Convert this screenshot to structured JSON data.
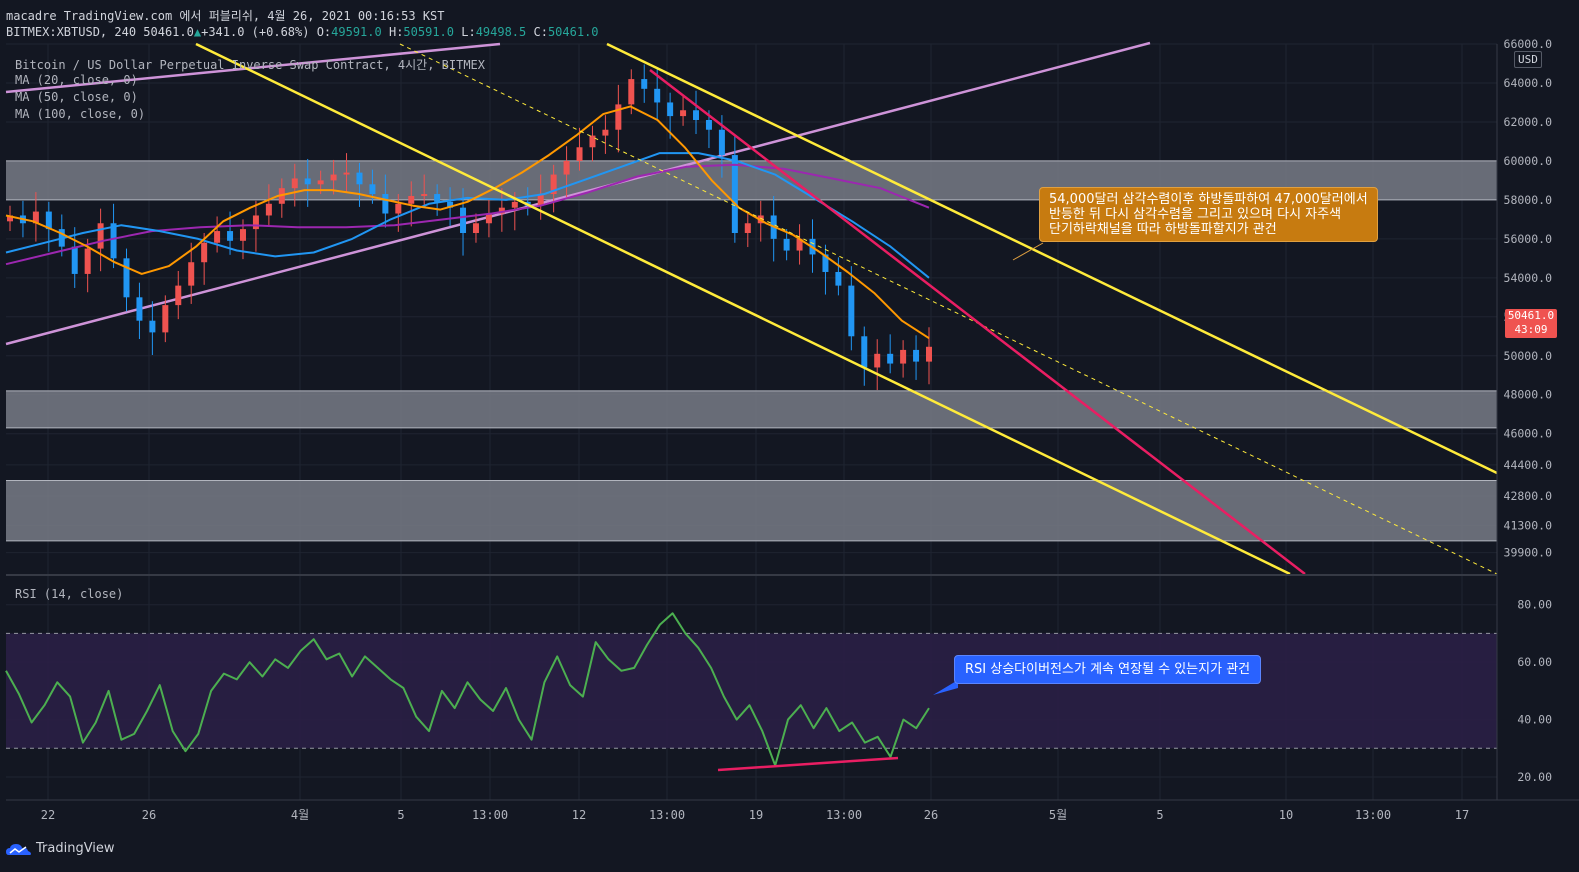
{
  "header": {
    "publish_line": "macadre TradingView.com 에서 퍼블리쉬, 4월 26, 2021 00:16:53 KST",
    "symbol": "BITMEX:XBTUSD, 240",
    "last": "50461.0",
    "change": "+341.0 (+0.68%)",
    "o_label": "O:",
    "o_value": "49591.0",
    "h_label": "H:",
    "h_value": "50591.0",
    "l_label": "L:",
    "l_value": "49498.5",
    "c_label": "C:",
    "c_value": "50461.0"
  },
  "legend": {
    "title": "Bitcoin / US Dollar Perpetual Inverse Swap Contract, 4시간, BITMEX",
    "ma20": "MA (20, close, 0)",
    "ma50": "MA (50, close, 0)",
    "ma100": "MA (100, close, 0)",
    "rsi": "RSI (14, close)"
  },
  "annotations": {
    "price_note_line1": "54,000달러 삼각수렴이후 하방돌파하여 47,000달러에서",
    "price_note_line2": "반등한 뒤 다시 삼각수렴을 그리고 있으며 다시 자주색",
    "price_note_line3": "단기하락채널을 따라 하방돌파할지가 관건",
    "rsi_note": "RSI 상승다이버전스가 계속 연장될 수 있는지가 관건"
  },
  "price_axis": {
    "currency": "USD",
    "last_price": "50461.0",
    "countdown": "43:09"
  },
  "footer": {
    "brand": "TradingView"
  },
  "colors": {
    "background": "#131722",
    "candle_up": "#ef5350",
    "candle_down": "#2196f3",
    "ma20": "#ff9800",
    "ma50": "#2196f3",
    "ma100": "#9c27b0",
    "channel_yellow": "#ffeb3b",
    "trend_pink": "#e91e63",
    "channel_violet": "#ce93d8",
    "rsi_line": "#4caf50",
    "price_note_bg": "#c77b10",
    "rsi_note_bg": "#2962ff"
  },
  "chart_data": [
    {
      "type": "candlestick",
      "title": "Bitcoin / US Dollar Perpetual Inverse Swap Contract, 4시간, BITMEX",
      "ylim": [
        38800,
        66000
      ],
      "y_ticks": [
        "66000.0",
        "64000.0",
        "62000.0",
        "60000.0",
        "58000.0",
        "56000.0",
        "54000.0",
        "52000.0",
        "50000.0",
        "48000.0",
        "46000.0",
        "44400.0",
        "42800.0",
        "41300.0",
        "39900.0"
      ],
      "x_ticks": [
        "22",
        "26",
        "4월",
        "5",
        "13:00",
        "12",
        "13:00",
        "19",
        "13:00",
        "26",
        "5월",
        "5",
        "10",
        "13:00",
        "17"
      ],
      "close_series": [
        57200,
        56800,
        57400,
        56500,
        55600,
        54200,
        55500,
        56800,
        55000,
        53000,
        51800,
        51200,
        52600,
        53600,
        54800,
        55800,
        56400,
        55900,
        56500,
        57200,
        57800,
        58600,
        59100,
        58800,
        59000,
        59300,
        59400,
        58800,
        58300,
        57300,
        57800,
        58200,
        58300,
        57900,
        57600,
        56300,
        56800,
        57300,
        57600,
        57900,
        57700,
        58300,
        59300,
        60000,
        60700,
        61300,
        61600,
        62900,
        64200,
        63700,
        63000,
        62300,
        62600,
        62100,
        61600,
        60300,
        56300,
        56800,
        57200,
        56000,
        55400,
        56000,
        55200,
        54300,
        53600,
        51000,
        49400,
        50100,
        49600,
        50300,
        49700,
        50461
      ],
      "ma20": [
        57200,
        56900,
        56300,
        55600,
        54800,
        54200,
        54600,
        55600,
        56900,
        57600,
        58200,
        58500,
        58500,
        58300,
        58000,
        57700,
        57500,
        57900,
        58600,
        59400,
        60300,
        61300,
        62400,
        62800,
        62100,
        60700,
        59000,
        57600,
        56800,
        56200,
        55300,
        54300,
        53200,
        51800,
        50900
      ],
      "ma50": [
        55300,
        55800,
        56300,
        56700,
        56400,
        56000,
        55400,
        55100,
        55300,
        56000,
        57000,
        57800,
        58100,
        58000,
        58300,
        59000,
        59700,
        60400,
        60400,
        60000,
        59300,
        58100,
        56900,
        55600,
        54000
      ],
      "ma100": [
        54700,
        55300,
        55900,
        56400,
        56600,
        56700,
        56600,
        56600,
        56700,
        57000,
        57300,
        57700,
        58400,
        59200,
        59700,
        59800,
        59600,
        59100,
        58600,
        57600
      ],
      "zones": [
        [
          58000,
          60000
        ],
        [
          46300,
          48200
        ],
        [
          40500,
          43600
        ]
      ],
      "annotation": "54,000달러 삼각수렴이후 하방돌파하여 47,000달러에서 반등한 뒤 다시 삼각수렴을 그리고 있으며 다시 자주색 단기하락채널을 따라 하방돌파할지가 관건"
    },
    {
      "type": "line",
      "title": "RSI (14, close)",
      "ylim": [
        12,
        90
      ],
      "y_ticks": [
        "80.00",
        "60.00",
        "40.00",
        "20.00"
      ],
      "levels": [
        30,
        70
      ],
      "values": [
        57,
        49,
        39,
        45,
        53,
        48,
        32,
        39,
        50,
        33,
        35,
        43,
        52,
        36,
        29,
        35,
        50,
        56,
        54,
        60,
        55,
        61,
        58,
        64,
        68,
        61,
        63,
        55,
        62,
        58,
        54,
        51,
        41,
        36,
        50,
        44,
        53,
        47,
        43,
        51,
        40,
        33,
        53,
        62,
        52,
        48,
        67,
        61,
        57,
        58,
        66,
        73,
        77,
        70,
        65,
        58,
        48,
        40,
        45,
        36,
        24,
        40,
        45,
        37,
        44,
        36,
        39,
        32,
        34,
        27,
        40,
        37,
        44
      ],
      "annotation": "RSI 상승다이버전스가 계속 연장될 수 있는지가 관건"
    }
  ]
}
